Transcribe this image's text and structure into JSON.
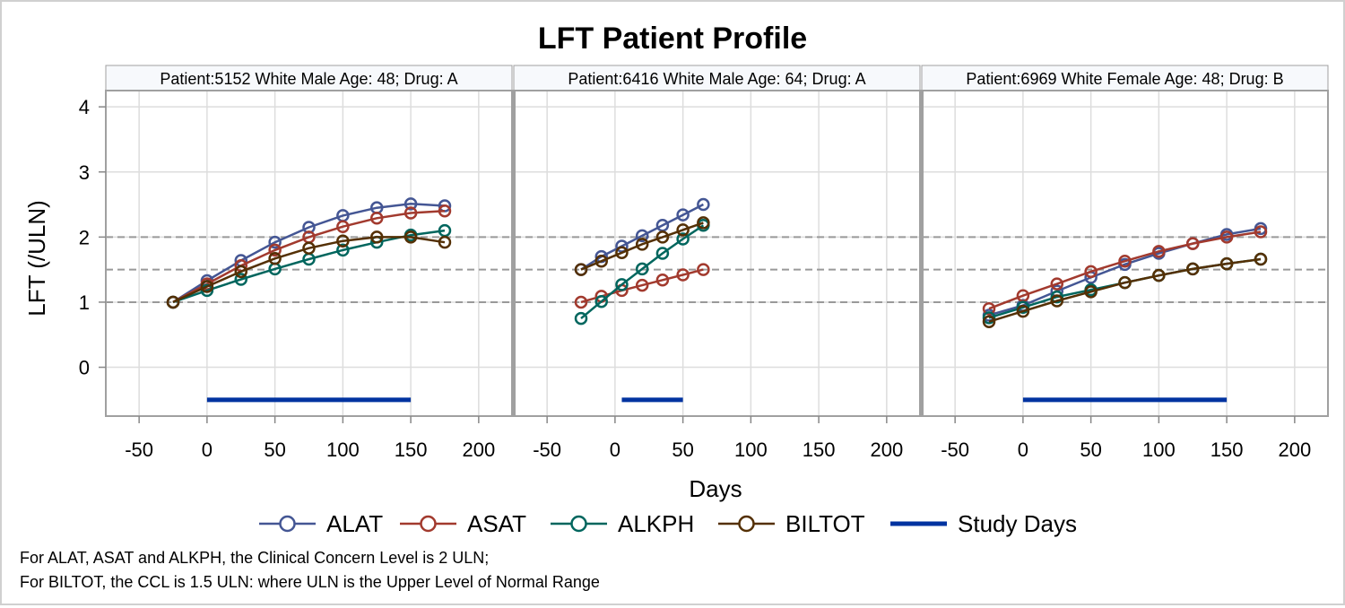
{
  "chart_data": {
    "type": "line",
    "title": "LFT Patient Profile",
    "xlabel": "Days",
    "ylabel": "LFT (/ULN)",
    "xlim": [
      -60,
      210
    ],
    "ylim": [
      -0.75,
      4.25
    ],
    "xticks": [
      -50,
      0,
      50,
      100,
      150,
      200
    ],
    "yticks": [
      0,
      1,
      2,
      3,
      4
    ],
    "reference_lines_y": [
      1,
      1.5,
      2
    ],
    "grid": true,
    "legend_position": "bottom",
    "colors": {
      "ALAT": "#445694",
      "ASAT": "#a23a2e",
      "ALKPH": "#01665e",
      "BILTOT": "#543005",
      "Study Days": "#0033a0",
      "refline": "#999999",
      "grid": "#dddddd",
      "axis": "#a0a0a0",
      "header_bg": "#f7f9fc"
    },
    "legend": [
      "ALAT",
      "ASAT",
      "ALKPH",
      "BILTOT",
      "Study Days"
    ],
    "panels": [
      {
        "header": "Patient:5152 White Male Age: 48; Drug: A",
        "study_days": [
          0,
          150
        ],
        "series": [
          {
            "name": "ALAT",
            "x": [
              -25,
              0,
              25,
              50,
              75,
              100,
              125,
              150,
              175
            ],
            "y": [
              1.0,
              1.33,
              1.64,
              1.92,
              2.15,
              2.33,
              2.45,
              2.51,
              2.48
            ]
          },
          {
            "name": "ASAT",
            "x": [
              -25,
              0,
              25,
              50,
              75,
              100,
              125,
              150,
              175
            ],
            "y": [
              1.0,
              1.28,
              1.56,
              1.8,
              2.0,
              2.16,
              2.29,
              2.37,
              2.4
            ]
          },
          {
            "name": "ALKPH",
            "x": [
              -25,
              0,
              25,
              50,
              75,
              100,
              125,
              150,
              175
            ],
            "y": [
              1.0,
              1.18,
              1.35,
              1.51,
              1.66,
              1.8,
              1.92,
              2.03,
              2.1
            ]
          },
          {
            "name": "BILTOT",
            "x": [
              -25,
              0,
              25,
              50,
              75,
              100,
              125,
              150,
              175
            ],
            "y": [
              1.0,
              1.24,
              1.47,
              1.67,
              1.83,
              1.94,
              2.0,
              2.0,
              1.92
            ]
          }
        ]
      },
      {
        "header": "Patient:6416 White Male Age: 64; Drug: A",
        "study_days": [
          5,
          50
        ],
        "series": [
          {
            "name": "ALAT",
            "x": [
              -25,
              -10,
              5,
              20,
              35,
              50,
              65
            ],
            "y": [
              1.5,
              1.7,
              1.86,
              2.02,
              2.18,
              2.34,
              2.5
            ]
          },
          {
            "name": "ASAT",
            "x": [
              -25,
              -10,
              5,
              20,
              35,
              50,
              65
            ],
            "y": [
              1.0,
              1.09,
              1.18,
              1.26,
              1.34,
              1.42,
              1.5
            ]
          },
          {
            "name": "ALKPH",
            "x": [
              -25,
              -10,
              5,
              20,
              35,
              50,
              65
            ],
            "y": [
              0.75,
              1.01,
              1.27,
              1.51,
              1.75,
              1.97,
              2.18
            ]
          },
          {
            "name": "BILTOT",
            "x": [
              -25,
              -10,
              5,
              20,
              35,
              50,
              65
            ],
            "y": [
              1.5,
              1.63,
              1.76,
              1.89,
              2.0,
              2.11,
              2.22
            ]
          }
        ]
      },
      {
        "header": "Patient:6969 White Female Age: 48; Drug: B",
        "study_days": [
          0,
          150
        ],
        "series": [
          {
            "name": "ALAT",
            "x": [
              -25,
              0,
              25,
              50,
              75,
              100,
              125,
              150,
              175
            ],
            "y": [
              0.8,
              0.95,
              1.17,
              1.38,
              1.58,
              1.75,
              1.9,
              2.04,
              2.13
            ]
          },
          {
            "name": "ASAT",
            "x": [
              -25,
              0,
              25,
              50,
              75,
              100,
              125,
              150,
              175
            ],
            "y": [
              0.9,
              1.1,
              1.28,
              1.47,
              1.63,
              1.78,
              1.9,
              2.0,
              2.08
            ]
          },
          {
            "name": "ALKPH",
            "x": [
              -25,
              0,
              25,
              50,
              75,
              100,
              125,
              150,
              175
            ],
            "y": [
              0.76,
              0.92,
              1.08,
              1.19,
              1.3,
              1.41,
              1.51,
              1.59,
              1.66
            ]
          },
          {
            "name": "BILTOT",
            "x": [
              -25,
              0,
              25,
              50,
              75,
              100,
              125,
              150,
              175
            ],
            "y": [
              0.7,
              0.86,
              1.02,
              1.16,
              1.3,
              1.41,
              1.51,
              1.59,
              1.66
            ]
          }
        ]
      }
    ]
  },
  "footnotes": [
    "For ALAT, ASAT and ALKPH, the Clinical Concern Level is 2 ULN;",
    "For BILTOT, the CCL is 1.5 ULN: where ULN is the Upper Level of Normal Range"
  ]
}
